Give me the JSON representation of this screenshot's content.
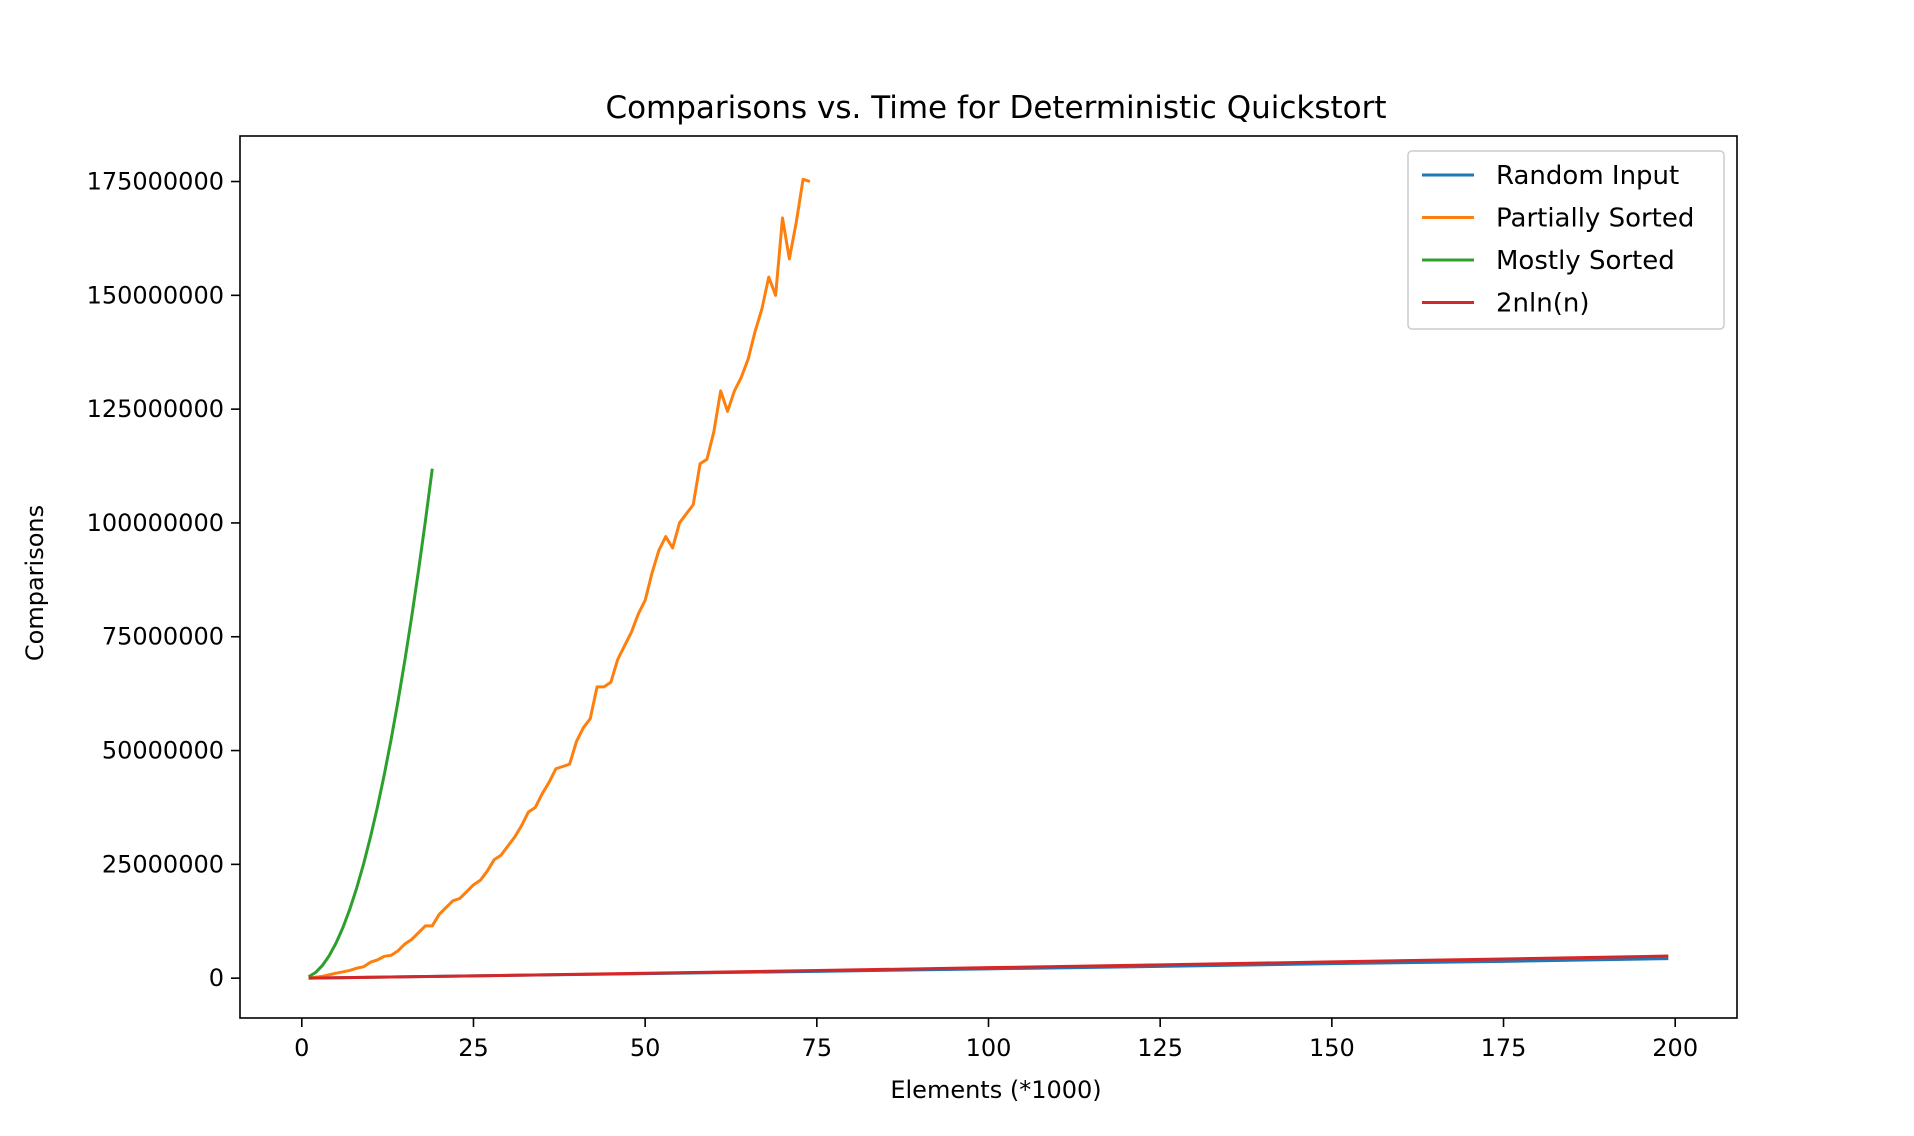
{
  "chart_data": {
    "type": "line",
    "title": "Comparisons vs. Time for Deterministic Quickstort",
    "xlabel": "Elements (*1000)",
    "ylabel": "Comparisons",
    "xlim": [
      -9,
      209
    ],
    "ylim": [
      -8750000,
      185000000
    ],
    "xticks": [
      0,
      25,
      50,
      75,
      100,
      125,
      150,
      175,
      200
    ],
    "yticks": [
      0,
      25000000,
      50000000,
      75000000,
      100000000,
      125000000,
      150000000,
      175000000
    ],
    "grid": false,
    "legend_position": "top-right",
    "series": [
      {
        "name": "Random Input",
        "color": "#1f77b4",
        "x": [
          1,
          25,
          50,
          75,
          100,
          125,
          150,
          175,
          199
        ],
        "y": [
          15000,
          500000,
          1000000,
          1500000,
          2050000,
          2600000,
          3200000,
          3700000,
          4300000
        ]
      },
      {
        "name": "Partially Sorted",
        "color": "#ff7f0e",
        "x": [
          1,
          3,
          5,
          7,
          8,
          9,
          10,
          11,
          12,
          13,
          14,
          15,
          16,
          17,
          18,
          19,
          20,
          21,
          22,
          23,
          24,
          25,
          26,
          27,
          28,
          29,
          30,
          31,
          32,
          33,
          34,
          35,
          36,
          37,
          38,
          39,
          40,
          41,
          42,
          43,
          44,
          45,
          46,
          47,
          48,
          49,
          50,
          51,
          52,
          53,
          54,
          55,
          56,
          57,
          58,
          59,
          60,
          61,
          62,
          63,
          64,
          65,
          66,
          67,
          68,
          69,
          70,
          71,
          72,
          73,
          74
        ],
        "y": [
          0,
          400000,
          1100000,
          1700000,
          2200000,
          2500000,
          3500000,
          4000000,
          4800000,
          5000000,
          6000000,
          7500000,
          8500000,
          10000000,
          11500000,
          11500000,
          14000000,
          15500000,
          17000000,
          17500000,
          19000000,
          20500000,
          21500000,
          23500000,
          26000000,
          27000000,
          29000000,
          31000000,
          33500000,
          36500000,
          37500000,
          40500000,
          43000000,
          46000000,
          46500000,
          47000000,
          52000000,
          55000000,
          57000000,
          64000000,
          64000000,
          65000000,
          70000000,
          73000000,
          76000000,
          80000000,
          83000000,
          89000000,
          94000000,
          97000000,
          94500000,
          100000000,
          102000000,
          104000000,
          113000000,
          114000000,
          120000000,
          129000000,
          124500000,
          129000000,
          132000000,
          136000000,
          142000000,
          147000000,
          154000000,
          150000000,
          167000000,
          158000000,
          166000000,
          175500000,
          175000000
        ]
      },
      {
        "name": "Mostly Sorted",
        "color": "#2ca02c",
        "x": [
          1,
          2,
          3,
          4,
          5,
          6,
          7,
          8,
          9,
          10,
          11,
          12,
          13,
          14,
          15,
          16,
          17,
          18,
          19
        ],
        "y": [
          310000,
          1240000,
          2790000,
          4960000,
          7750000,
          11160000,
          15190000,
          19840000,
          25110000,
          31000000,
          37510000,
          44640000,
          52390000,
          60760000,
          69750000,
          79360000,
          89590000,
          100440000,
          111910000
        ]
      },
      {
        "name": "2nln(n)",
        "color": "#d62728",
        "x": [
          1,
          25,
          50,
          75,
          100,
          125,
          150,
          175,
          199
        ],
        "y": [
          13800,
          506000,
          1082000,
          1684000,
          2303000,
          2933000,
          3576000,
          4223000,
          4856000
        ]
      }
    ]
  }
}
